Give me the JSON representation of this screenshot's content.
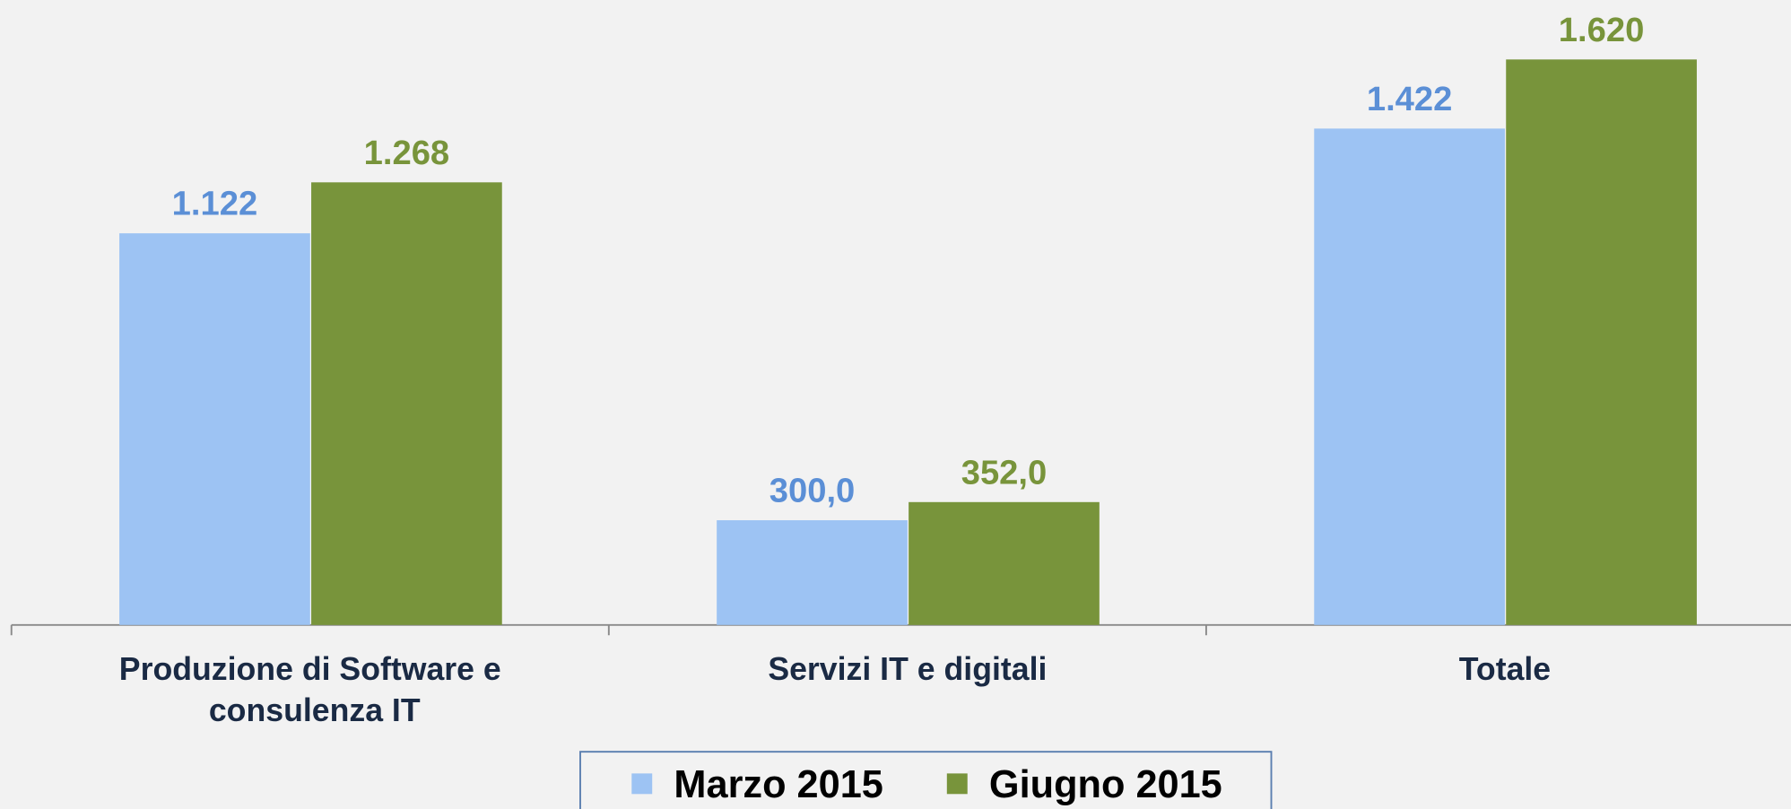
{
  "chart_data": {
    "type": "bar",
    "categories": [
      "Produzione di Software e consulenza IT",
      "Servizi IT e digitali",
      "Totale"
    ],
    "series": [
      {
        "name": "Marzo 2015",
        "color": "#9dc3f3",
        "label_color": "#5b8fd6",
        "values": [
          1122,
          300,
          1422
        ],
        "value_labels": [
          "1.122",
          "300,0",
          "1.422"
        ]
      },
      {
        "name": "Giugno 2015",
        "color": "#78943b",
        "label_color": "#78943b",
        "values": [
          1268,
          352,
          1620
        ],
        "value_labels": [
          "1.268",
          "352,0",
          "1.620"
        ]
      }
    ],
    "ylim": [
      0,
      1790
    ],
    "legend": "bottom"
  }
}
